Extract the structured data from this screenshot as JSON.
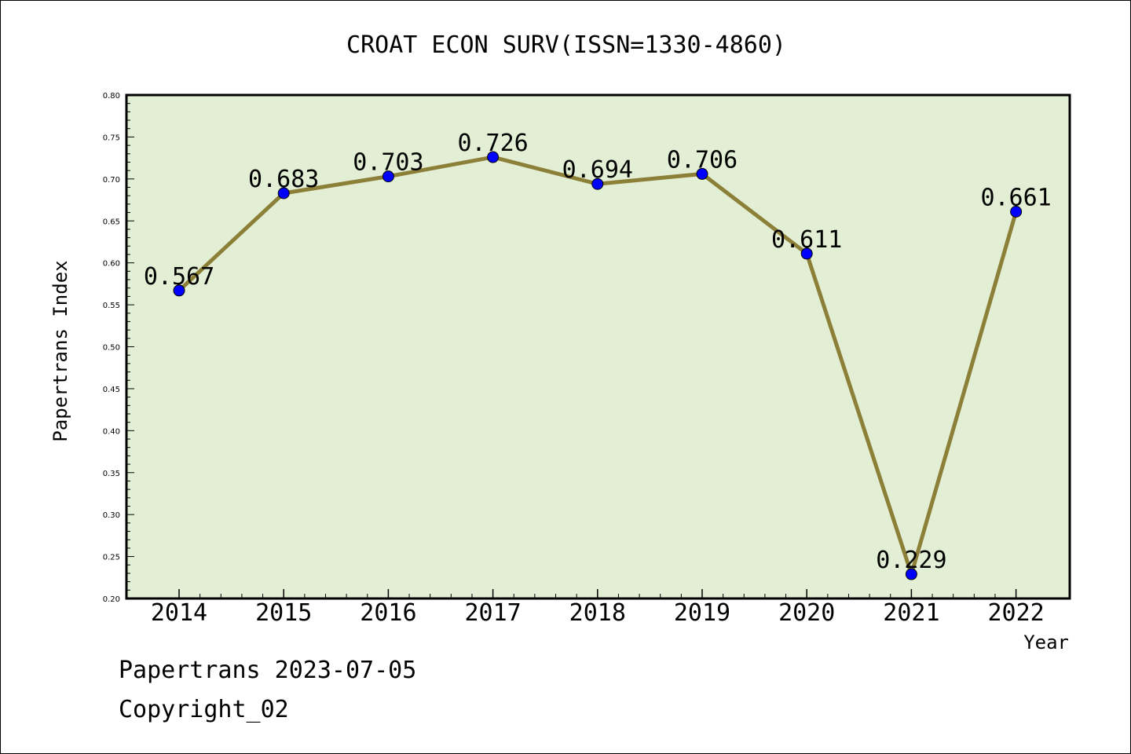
{
  "chart_data": {
    "type": "line",
    "title": "CROAT ECON SURV(ISSN=1330-4860)",
    "xlabel": "Year",
    "ylabel": "Papertrans Index",
    "categories": [
      "2014",
      "2015",
      "2016",
      "2017",
      "2018",
      "2019",
      "2020",
      "2021",
      "2022"
    ],
    "values": [
      0.567,
      0.683,
      0.703,
      0.726,
      0.694,
      0.706,
      0.611,
      0.229,
      0.661
    ],
    "data_labels": [
      "0.567",
      "0.683",
      "0.703",
      "0.726",
      "0.694",
      "0.706",
      "0.611",
      "0.229",
      "0.661"
    ],
    "ylim": [
      0.2,
      0.8
    ],
    "yticks": [
      "0.20",
      "0.25",
      "0.30",
      "0.35",
      "0.40",
      "0.45",
      "0.50",
      "0.55",
      "0.60",
      "0.65",
      "0.70",
      "0.75",
      "0.80"
    ],
    "grid": false,
    "legend": "none",
    "colors": {
      "plot_background": "#e2efd5",
      "line": "#8c7f37",
      "marker": "#0000ff",
      "axes": "#000000"
    }
  },
  "footer": {
    "line1": "Papertrans 2023-07-05",
    "line2": "Copyright_02"
  }
}
